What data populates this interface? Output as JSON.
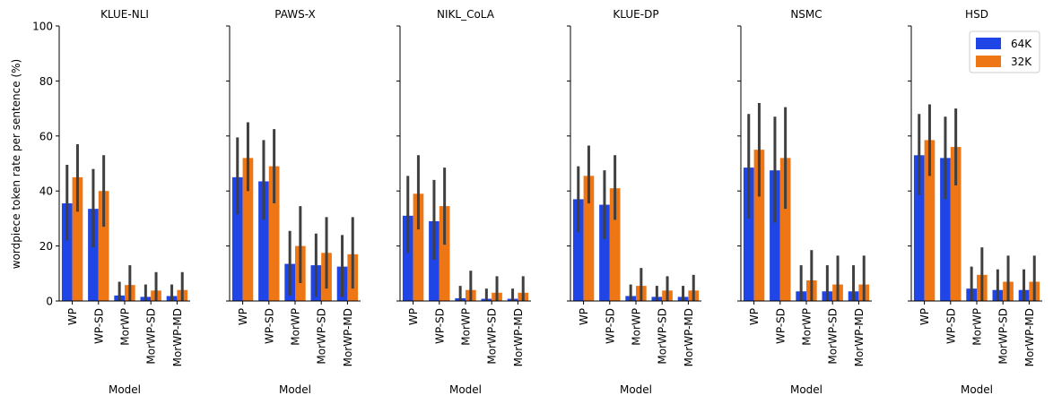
{
  "figure": {
    "ylabel": "wordpiece token rate per sentence (%)",
    "xlabel": "Model",
    "legend": {
      "placement": "top-right",
      "entries": [
        "64K",
        "32K"
      ]
    }
  },
  "colors": {
    "64K": "#1f45e6",
    "32K": "#ee7614",
    "errorbar": "#3f3f3f"
  },
  "chart_data": {
    "type": "bar",
    "categories": [
      "WP",
      "WP-SD",
      "MorWP",
      "MorWP-SD",
      "MorWP-MD"
    ],
    "ylim": [
      0,
      100
    ],
    "yticks": [
      0,
      20,
      40,
      60,
      80,
      100
    ],
    "ytick_labels": [
      "0",
      "20",
      "40",
      "60",
      "80",
      "100"
    ],
    "legend_placement": "top-right",
    "grid": false,
    "panels": [
      {
        "title": "KLUE-NLI",
        "series": [
          {
            "name": "64K",
            "values": [
              35.5,
              33.5,
              2.0,
              1.5,
              1.8
            ],
            "err_low": [
              22.0,
              19.5,
              0.0,
              0.0,
              0.0
            ],
            "err_high": [
              49.5,
              48.0,
              7.0,
              6.0,
              6.0
            ]
          },
          {
            "name": "32K",
            "values": [
              45.0,
              40.0,
              5.8,
              3.8,
              4.0
            ],
            "err_low": [
              32.5,
              27.0,
              0.0,
              0.0,
              0.0
            ],
            "err_high": [
              57.0,
              53.0,
              13.0,
              10.5,
              10.5
            ]
          }
        ]
      },
      {
        "title": "PAWS-X",
        "series": [
          {
            "name": "64K",
            "values": [
              45.0,
              43.5,
              13.5,
              13.0,
              12.5
            ],
            "err_low": [
              31.5,
              29.5,
              2.0,
              1.5,
              1.5
            ],
            "err_high": [
              59.5,
              58.5,
              25.5,
              24.5,
              24.0
            ]
          },
          {
            "name": "32K",
            "values": [
              52.0,
              49.0,
              20.0,
              17.5,
              17.0
            ],
            "err_low": [
              40.0,
              35.5,
              6.5,
              4.5,
              4.5
            ],
            "err_high": [
              65.0,
              62.5,
              34.5,
              30.5,
              30.5
            ]
          }
        ]
      },
      {
        "title": "NIKL_CoLA",
        "series": [
          {
            "name": "64K",
            "values": [
              31.0,
              29.0,
              1.0,
              0.8,
              0.8
            ],
            "err_low": [
              17.5,
              15.0,
              0.0,
              0.0,
              0.0
            ],
            "err_high": [
              45.5,
              44.0,
              5.5,
              4.5,
              4.5
            ]
          },
          {
            "name": "32K",
            "values": [
              39.0,
              34.5,
              4.0,
              3.0,
              3.0
            ],
            "err_low": [
              26.0,
              20.5,
              0.0,
              0.0,
              0.0
            ],
            "err_high": [
              53.0,
              48.5,
              11.0,
              9.0,
              9.0
            ]
          }
        ]
      },
      {
        "title": "KLUE-DP",
        "series": [
          {
            "name": "64K",
            "values": [
              37.0,
              35.0,
              1.8,
              1.5,
              1.5
            ],
            "err_low": [
              25.0,
              22.5,
              0.0,
              0.0,
              0.0
            ],
            "err_high": [
              49.0,
              47.5,
              6.0,
              5.5,
              5.5
            ]
          },
          {
            "name": "32K",
            "values": [
              45.5,
              41.0,
              5.5,
              3.8,
              3.8
            ],
            "err_low": [
              35.5,
              29.5,
              0.0,
              0.0,
              0.0
            ],
            "err_high": [
              56.5,
              53.0,
              12.0,
              9.0,
              9.5
            ]
          }
        ]
      },
      {
        "title": "NSMC",
        "series": [
          {
            "name": "64K",
            "values": [
              48.5,
              47.5,
              3.5,
              3.5,
              3.5
            ],
            "err_low": [
              30.0,
              28.5,
              0.0,
              0.0,
              0.0
            ],
            "err_high": [
              68.0,
              67.0,
              13.0,
              13.0,
              13.0
            ]
          },
          {
            "name": "32K",
            "values": [
              55.0,
              52.0,
              7.5,
              6.0,
              6.0
            ],
            "err_low": [
              38.0,
              33.5,
              0.0,
              0.0,
              0.0
            ],
            "err_high": [
              72.0,
              70.5,
              18.5,
              16.5,
              16.5
            ]
          }
        ]
      },
      {
        "title": "HSD",
        "series": [
          {
            "name": "64K",
            "values": [
              53.0,
              52.0,
              4.5,
              4.0,
              4.0
            ],
            "err_low": [
              38.5,
              37.0,
              0.0,
              0.0,
              0.0
            ],
            "err_high": [
              68.0,
              67.0,
              12.5,
              11.5,
              11.5
            ]
          },
          {
            "name": "32K",
            "values": [
              58.5,
              56.0,
              9.5,
              7.0,
              7.0
            ],
            "err_low": [
              45.5,
              42.0,
              0.0,
              0.0,
              0.0
            ],
            "err_high": [
              71.5,
              70.0,
              19.5,
              16.5,
              16.5
            ]
          }
        ]
      }
    ]
  }
}
